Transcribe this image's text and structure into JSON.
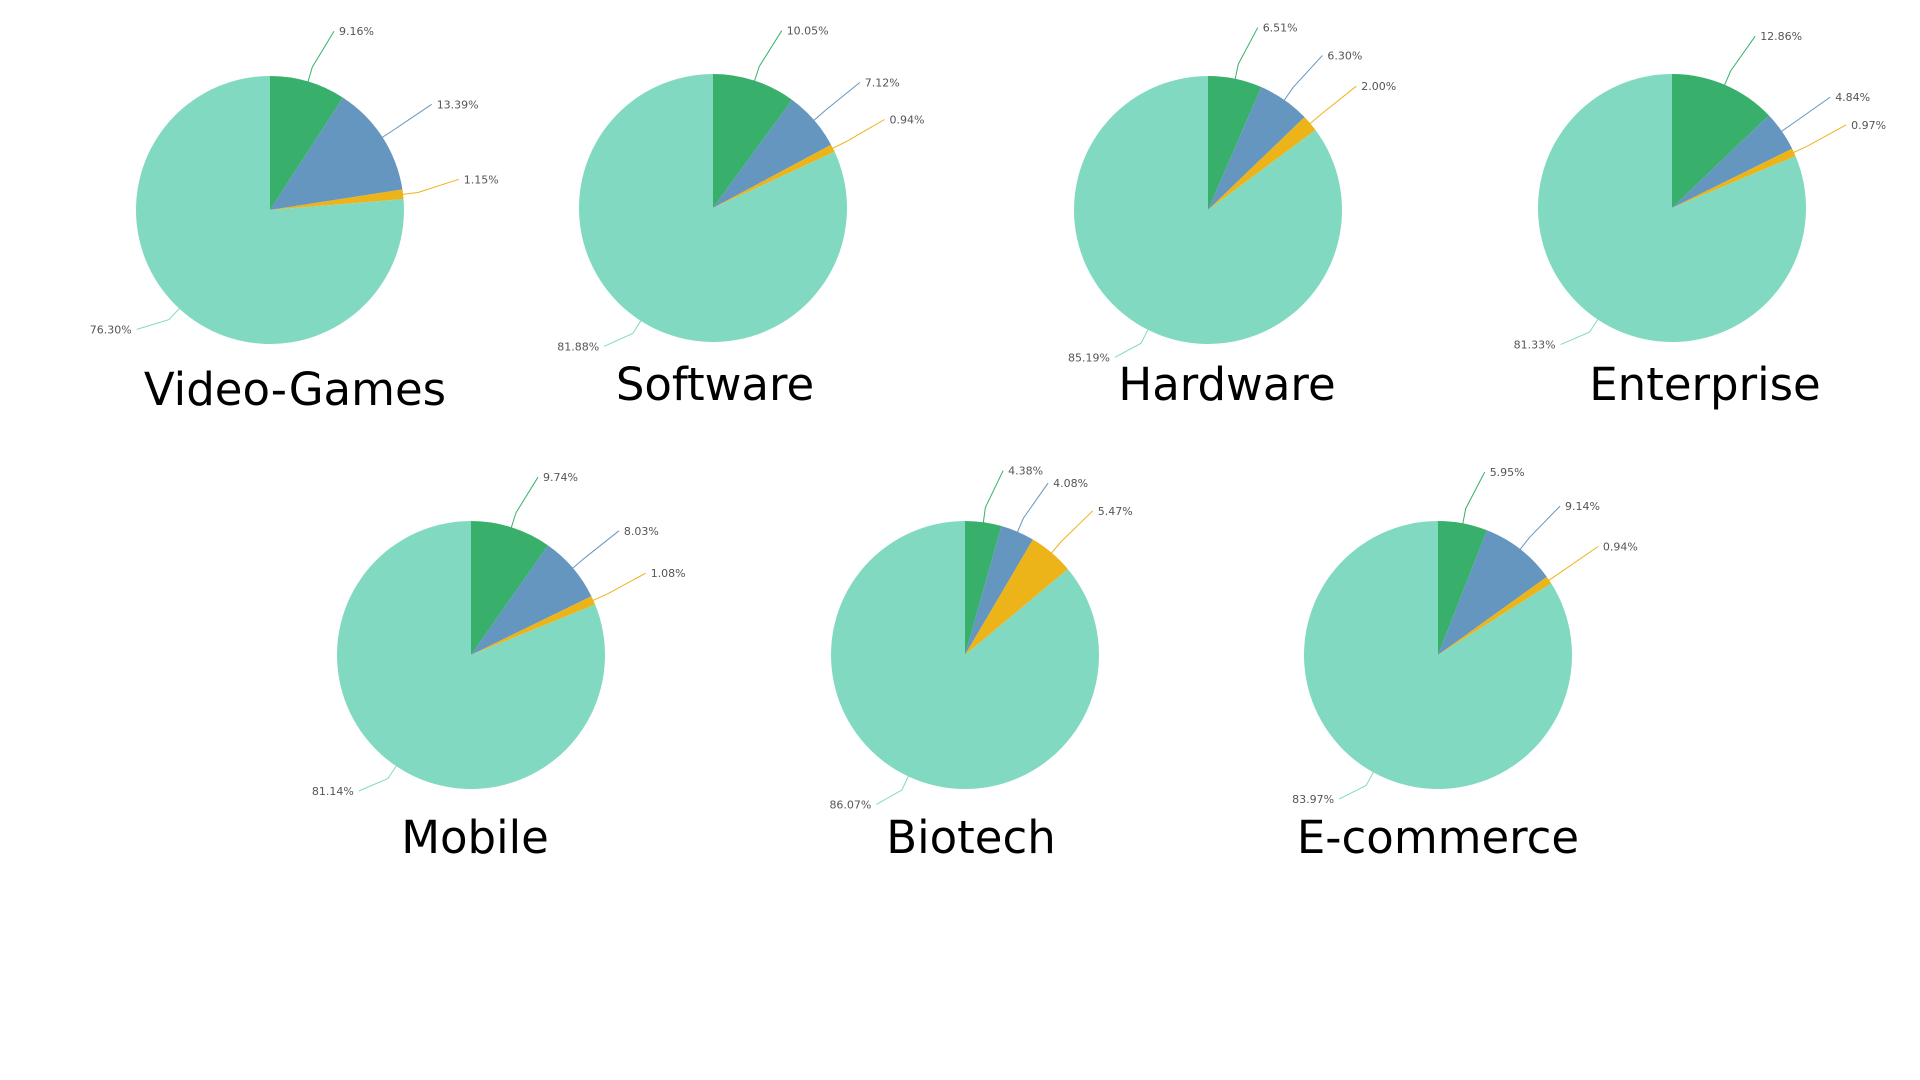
{
  "colors": {
    "slice_1": "#38b06b",
    "slice_2": "#6596bf",
    "slice_3": "#ecb418",
    "slice_4": "#82d9c1",
    "leader_4": "#82d9c1"
  },
  "chart_data": [
    {
      "type": "pie",
      "title": "Video-Games",
      "values": [
        9.16,
        13.39,
        1.15,
        76.3
      ],
      "labels": [
        "9.16%",
        "13.39%",
        "1.15%",
        "76.30%"
      ]
    },
    {
      "type": "pie",
      "title": "Software",
      "values": [
        10.05,
        7.12,
        0.94,
        81.88
      ],
      "labels": [
        "10.05%",
        "7.12%",
        "0.94%",
        "81.88%"
      ]
    },
    {
      "type": "pie",
      "title": "Hardware",
      "values": [
        6.51,
        6.3,
        2.0,
        85.19
      ],
      "labels": [
        "6.51%",
        "6.30%",
        "2.00%",
        "85.19%"
      ]
    },
    {
      "type": "pie",
      "title": "Enterprise",
      "values": [
        12.86,
        4.84,
        0.97,
        81.33
      ],
      "labels": [
        "12.86%",
        "4.84%",
        "0.97%",
        "81.33%"
      ]
    },
    {
      "type": "pie",
      "title": "Mobile",
      "values": [
        9.74,
        8.03,
        1.08,
        81.14
      ],
      "labels": [
        "9.74%",
        "8.03%",
        "1.08%",
        "81.14%"
      ]
    },
    {
      "type": "pie",
      "title": "Biotech",
      "values": [
        4.38,
        4.08,
        5.47,
        86.07
      ],
      "labels": [
        "4.38%",
        "4.08%",
        "5.47%",
        "86.07%"
      ]
    },
    {
      "type": "pie",
      "title": "E-commerce",
      "values": [
        5.95,
        9.14,
        0.94,
        83.97
      ],
      "labels": [
        "5.95%",
        "9.14%",
        "0.94%",
        "83.97%"
      ]
    }
  ]
}
